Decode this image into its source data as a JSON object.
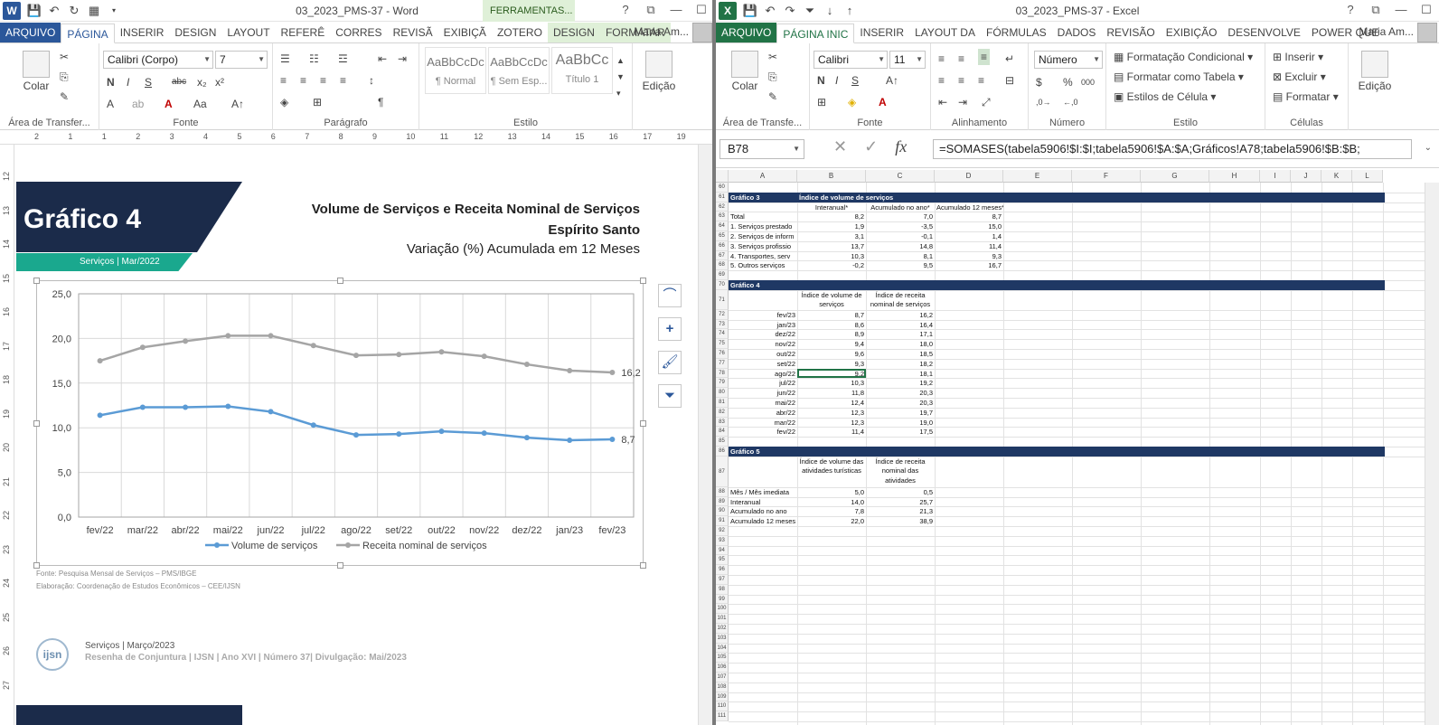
{
  "word": {
    "title": "03_2023_PMS-37 - Word",
    "context_tab": "FERRAMENTAS...",
    "tabs": [
      "ARQUIVO",
      "PÁGINA",
      "INSERIR",
      "DESIGN",
      "LAYOUT",
      "REFERÊ",
      "CORRES",
      "REVISÃ",
      "EXIBIÇÃ",
      "ZOTERO",
      "DESIGN",
      "FORMATAR"
    ],
    "user": "Maria Am...",
    "ribbon": {
      "clipboard_label": "Área de Transfer...",
      "paste": "Colar",
      "font_name": "Calibri (Corpo)",
      "font_size": "7",
      "font_label": "Fonte",
      "paragraph_label": "Parágrafo",
      "styles": [
        {
          "sample": "AaBbCcDc",
          "name": "¶ Normal"
        },
        {
          "sample": "AaBbCcDc",
          "name": "¶ Sem Esp..."
        },
        {
          "sample": "AaBbCc",
          "name": "Título 1"
        }
      ],
      "styles_label": "Estilo",
      "edit": "Edição"
    },
    "ruler_h": [
      "2",
      "1",
      "1",
      "2",
      "3",
      "4",
      "5",
      "6",
      "7",
      "8",
      "9",
      "10",
      "11",
      "12",
      "13",
      "14",
      "15",
      "16",
      "17",
      "19"
    ],
    "ruler_v": [
      "12",
      "13",
      "14",
      "15",
      "16",
      "17",
      "18",
      "19",
      "20",
      "21",
      "22",
      "23",
      "24",
      "25",
      "26",
      "27"
    ],
    "doc": {
      "banner_title": "Gráfico 4",
      "banner_sub": "Serviços | Mar/2022",
      "title1": "Volume de Serviços e Receita Nominal de Serviços",
      "title2": "Espírito Santo",
      "title3": "Variação (%) Acumulada em 12 Meses",
      "source": "Fonte: Pesquisa Mensal de Serviços – PMS/IBGE",
      "elab": "Elaboração: Coordenação de Estudos Econômicos – CEE/IJSN",
      "footer1": "Serviços | Março/2023",
      "footer2": "Resenha de Conjuntura | IJSN | Ano XVI | Número 37| Divulgação: Mai/2023",
      "logo": "ijsn"
    }
  },
  "chart_data": {
    "type": "line",
    "categories": [
      "fev/22",
      "mar/22",
      "abr/22",
      "mai/22",
      "jun/22",
      "jul/22",
      "ago/22",
      "set/22",
      "out/22",
      "nov/22",
      "dez/22",
      "jan/23",
      "fev/23"
    ],
    "series": [
      {
        "name": "Volume de serviços",
        "color": "#5b9bd5",
        "values": [
          11.4,
          12.3,
          12.3,
          12.4,
          11.8,
          10.3,
          9.2,
          9.3,
          9.6,
          9.4,
          8.9,
          8.6,
          8.7
        ],
        "end_label": "8,7"
      },
      {
        "name": "Receita nominal de serviços",
        "color": "#a5a5a5",
        "values": [
          17.5,
          19.0,
          19.7,
          20.3,
          20.3,
          19.2,
          18.1,
          18.2,
          18.5,
          18.0,
          17.1,
          16.4,
          16.2
        ],
        "end_label": "16,2"
      }
    ],
    "y_ticks": [
      "0,0",
      "5,0",
      "10,0",
      "15,0",
      "20,0",
      "25,0"
    ],
    "ylim": [
      0,
      25
    ],
    "grid": true,
    "legend": "bottom"
  },
  "excel": {
    "title": "03_2023_PMS-37 - Excel",
    "tabs": [
      "ARQUIVO",
      "PÁGINA INIC",
      "INSERIR",
      "LAYOUT DA",
      "FÓRMULAS",
      "DADOS",
      "REVISÃO",
      "EXIBIÇÃO",
      "DESENVOLVE",
      "POWER QUE"
    ],
    "user": "Maria Am...",
    "ribbon": {
      "clipboard_label": "Área de Transfe...",
      "paste": "Colar",
      "font_name": "Calibri",
      "font_size": "11",
      "font_label": "Fonte",
      "align_label": "Alinhamento",
      "number_format": "Número",
      "number_label": "Número",
      "cond_format": "Formatação Condicional",
      "table_format": "Formatar como Tabela",
      "cell_styles": "Estilos de Célula",
      "styles_label": "Estilo",
      "insert": "Inserir",
      "delete": "Excluir",
      "format": "Formatar",
      "cells_label": "Células",
      "edit": "Edição"
    },
    "name_box": "B78",
    "formula": "=SOMASES(tabela5906!$I:$I;tabela5906!$A:$A;Gráficos!A78;tabela5906!$B:$B;",
    "columns": [
      "A",
      "B",
      "C",
      "D",
      "E",
      "F",
      "G",
      "H",
      "I",
      "J",
      "K",
      "L"
    ],
    "g3": {
      "label": "Gráfico 3",
      "title": "Índice de volume de serviços",
      "headers": [
        "Interanual*",
        "Acumulado no ano*",
        "Acumulado 12 meses**"
      ],
      "rows": [
        [
          "Total",
          "8,2",
          "7,0",
          "8,7"
        ],
        [
          "1. Serviços prestado",
          "1,9",
          "-3,5",
          "15,0"
        ],
        [
          "2. Serviços de inform",
          "3,1",
          "-0,1",
          "1,4"
        ],
        [
          "3. Serviços profissio",
          "13,7",
          "14,8",
          "11,4"
        ],
        [
          "4. Transportes, serv",
          "10,3",
          "8,1",
          "9,3"
        ],
        [
          "5. Outros serviços",
          "-0,2",
          "9,5",
          "16,7"
        ]
      ]
    },
    "g4": {
      "label": "Gráfico 4",
      "headers": [
        "Índice de volume de serviços",
        "Índice de receita nominal de serviços"
      ],
      "rows": [
        [
          "fev/23",
          "8,7",
          "16,2"
        ],
        [
          "jan/23",
          "8,6",
          "16,4"
        ],
        [
          "dez/22",
          "8,9",
          "17,1"
        ],
        [
          "nov/22",
          "9,4",
          "18,0"
        ],
        [
          "out/22",
          "9,6",
          "18,5"
        ],
        [
          "set/22",
          "9,3",
          "18,2"
        ],
        [
          "ago/22",
          "9,2",
          "18,1"
        ],
        [
          "jul/22",
          "10,3",
          "19,2"
        ],
        [
          "jun/22",
          "11,8",
          "20,3"
        ],
        [
          "mai/22",
          "12,4",
          "20,3"
        ],
        [
          "abr/22",
          "12,3",
          "19,7"
        ],
        [
          "mar/22",
          "12,3",
          "19,0"
        ],
        [
          "fev/22",
          "11,4",
          "17,5"
        ]
      ]
    },
    "g5": {
      "label": "Gráfico 5",
      "headers": [
        "Índice de volume das atividades turísticas",
        "Índice de receita nominal das atividades"
      ],
      "rows": [
        [
          "Mês / Mês imediata",
          "5,0",
          "0,5"
        ],
        [
          "Interanual",
          "14,0",
          "25,7"
        ],
        [
          "Acumulado no ano",
          "7,8",
          "21,3"
        ],
        [
          "Acumulado 12 meses",
          "22,0",
          "38,9"
        ]
      ]
    }
  }
}
